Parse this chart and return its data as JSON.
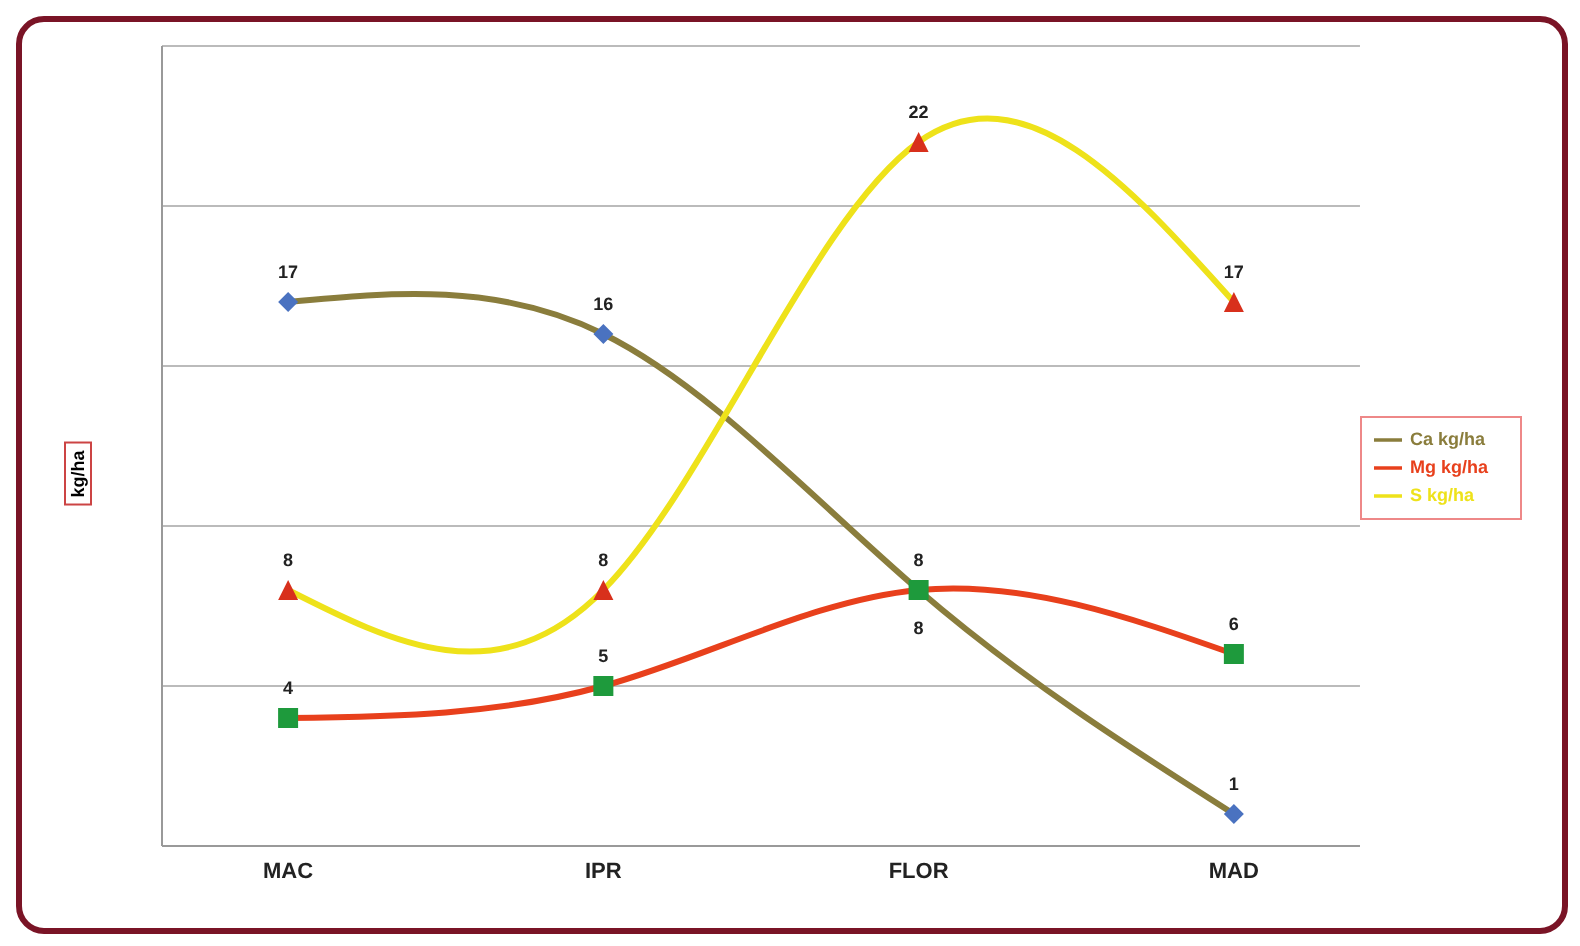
{
  "chart_data": {
    "type": "line",
    "ylabel": "kg/ha",
    "categories": [
      "MAC",
      "IPR",
      "FLOR",
      "MAD"
    ],
    "series": [
      {
        "name": "Ca kg/ha",
        "color": "#8a7d3c",
        "values": [
          17,
          16,
          8,
          1
        ],
        "marker": "diamond"
      },
      {
        "name": "Mg kg/ha",
        "color": "#e8401c",
        "values": [
          4,
          5,
          8,
          6
        ],
        "marker": "square"
      },
      {
        "name": "S kg/ha",
        "color": "#eee21a",
        "values": [
          8,
          8,
          22,
          17
        ],
        "marker": "triangle"
      }
    ],
    "ylim": [
      0,
      25
    ],
    "yticks": [
      {
        "value": 0,
        "label": null
      },
      {
        "value": 5,
        "label": null
      },
      {
        "value": 10,
        "label": null
      },
      {
        "value": 15,
        "label": null
      },
      {
        "value": 20,
        "label": null
      },
      {
        "value": 25,
        "label": null
      }
    ],
    "grid": "y",
    "tick_labels": "x",
    "legend": "right",
    "data_labels": true,
    "line_style": "solid"
  }
}
